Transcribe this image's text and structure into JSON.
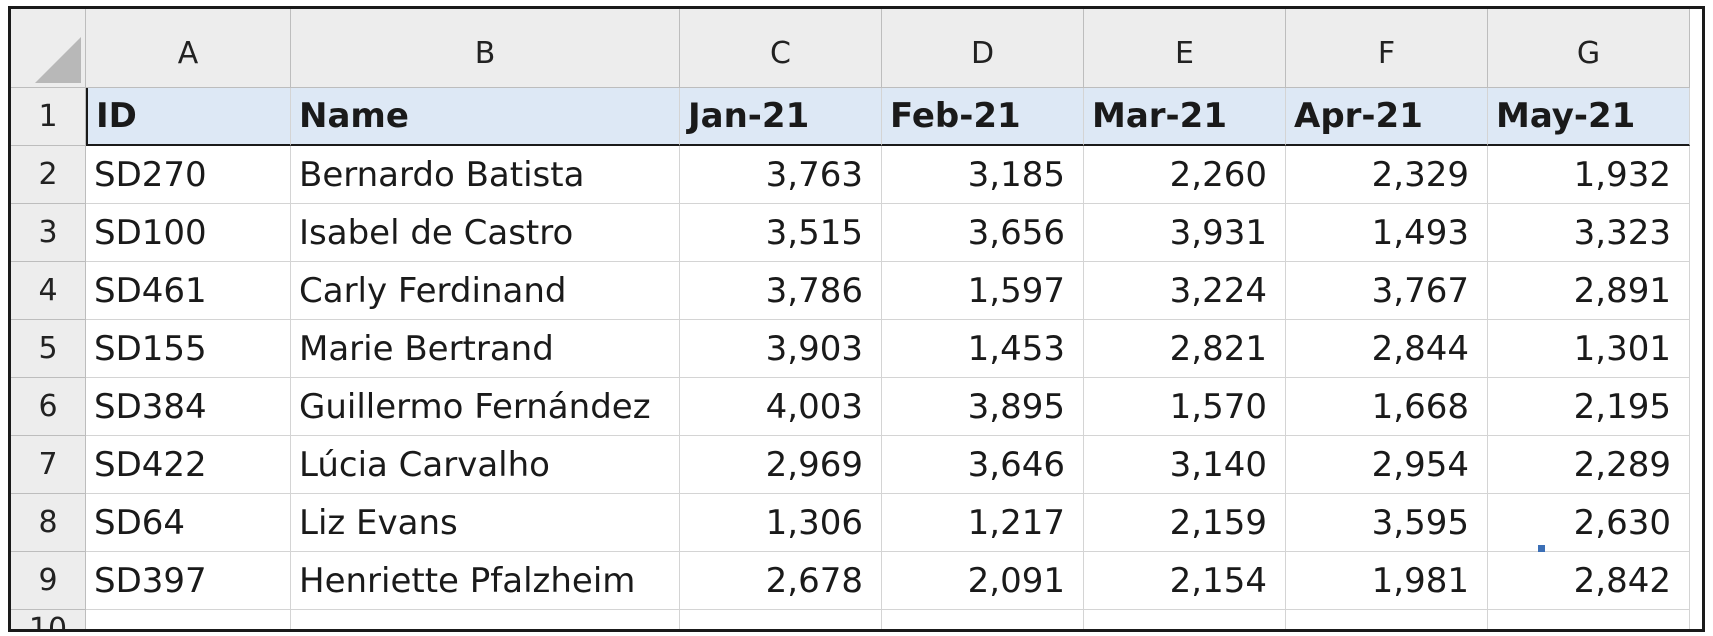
{
  "columns": [
    "A",
    "B",
    "C",
    "D",
    "E",
    "F",
    "G"
  ],
  "header_row": {
    "row_number": "1",
    "labels": [
      "ID",
      "Name",
      "Jan-21",
      "Feb-21",
      "Mar-21",
      "Apr-21",
      "May-21"
    ]
  },
  "rows": [
    {
      "row_number": "2",
      "id": "SD270",
      "name": "Bernardo Batista",
      "values": [
        "3,763",
        "3,185",
        "2,260",
        "2,329",
        "1,932"
      ]
    },
    {
      "row_number": "3",
      "id": "SD100",
      "name": "Isabel de Castro",
      "values": [
        "3,515",
        "3,656",
        "3,931",
        "1,493",
        "3,323"
      ]
    },
    {
      "row_number": "4",
      "id": "SD461",
      "name": "Carly Ferdinand",
      "values": [
        "3,786",
        "1,597",
        "3,224",
        "3,767",
        "2,891"
      ]
    },
    {
      "row_number": "5",
      "id": "SD155",
      "name": "Marie Bertrand",
      "values": [
        "3,903",
        "1,453",
        "2,821",
        "2,844",
        "1,301"
      ]
    },
    {
      "row_number": "6",
      "id": "SD384",
      "name": "Guillermo Fernández",
      "values": [
        "4,003",
        "3,895",
        "1,570",
        "1,668",
        "2,195"
      ]
    },
    {
      "row_number": "7",
      "id": "SD422",
      "name": "Lúcia Carvalho",
      "values": [
        "2,969",
        "3,646",
        "3,140",
        "2,954",
        "2,289"
      ]
    },
    {
      "row_number": "8",
      "id": "SD64",
      "name": "Liz Evans",
      "values": [
        "1,306",
        "1,217",
        "2,159",
        "3,595",
        "2,630"
      ]
    },
    {
      "row_number": "9",
      "id": "SD397",
      "name": "Henriette Pfalzheim",
      "values": [
        "2,678",
        "2,091",
        "2,154",
        "1,981",
        "2,842"
      ]
    }
  ],
  "partial_row_number": "10",
  "colors": {
    "header_fill": "#dde8f5",
    "grid_header_fill": "#ededed",
    "fill_handle": "#3b6fb6"
  }
}
